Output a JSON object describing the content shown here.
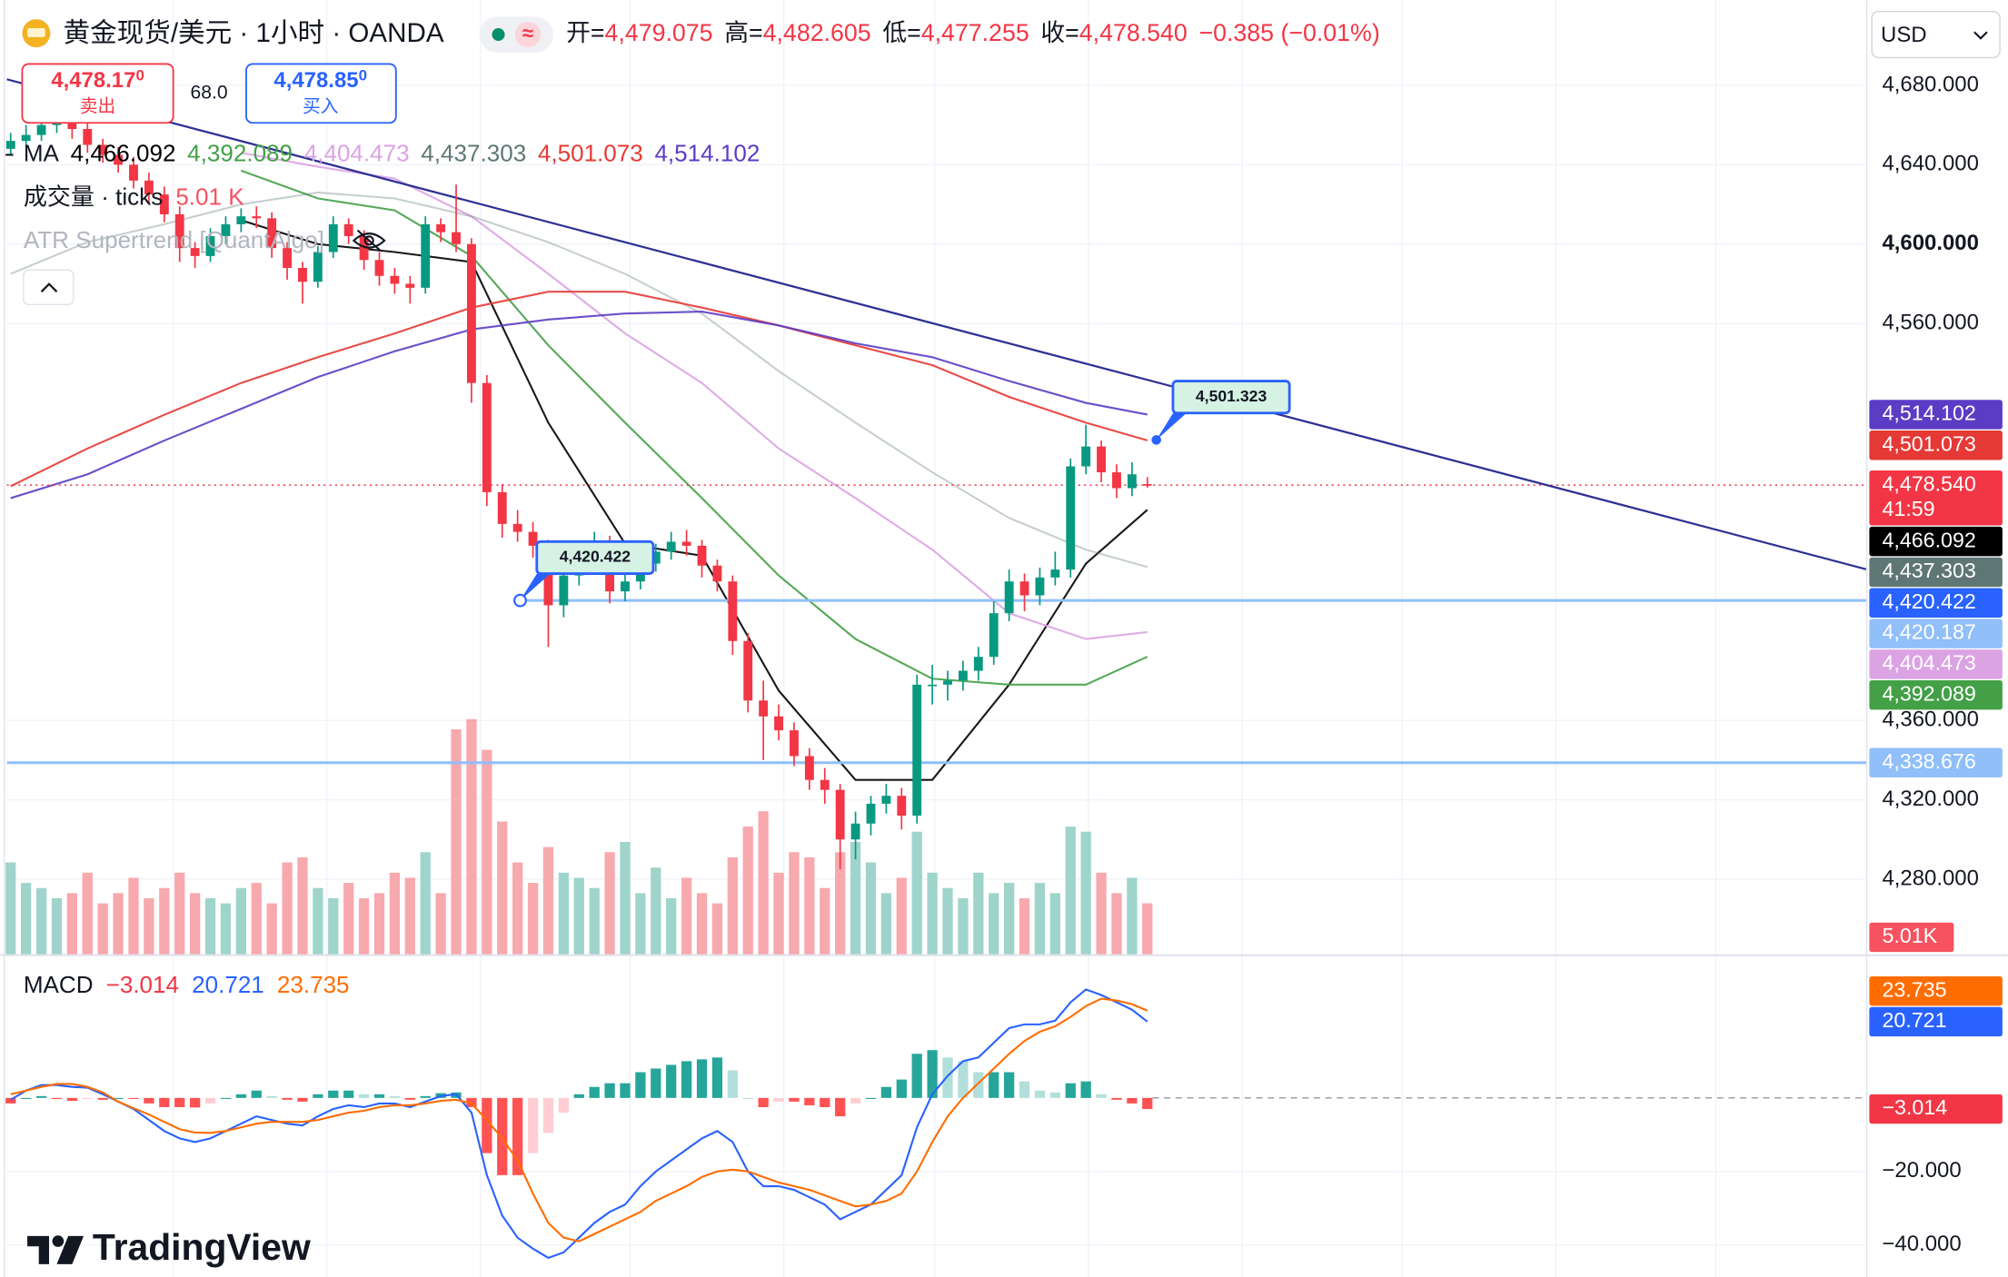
{
  "header": {
    "symbol": "黄金现货/美元 · 1小时 · OANDA",
    "open_label": "开=",
    "open": "4,479.075",
    "high_label": "高=",
    "high": "4,482.605",
    "low_label": "低=",
    "low": "4,477.255",
    "close_label": "收=",
    "close": "4,478.540",
    "change": "−0.385 (−0.01%)",
    "currency": "USD"
  },
  "quote": {
    "sell_price": "4,478.17",
    "sell_pip": "0",
    "sell_label": "卖出",
    "spread": "68.0",
    "buy_price": "4,478.85",
    "buy_pip": "0",
    "buy_label": "买入"
  },
  "legend": {
    "volume_label": "成交量 · ticks",
    "volume_value": "5.01 K",
    "indicator": "ATR Supertrend [QuantAlgo]"
  },
  "brand": "TradingView",
  "chart_data": {
    "type": "candlestick",
    "up_color": "#089981",
    "down_color": "#f23645",
    "ylim": [
      4242,
      4723
    ],
    "yticks": [
      {
        "value": 4680,
        "label": "4,680.000"
      },
      {
        "value": 4640,
        "label": "4,640.000"
      },
      {
        "value": 4600,
        "label": "4,600.000",
        "bold": true
      },
      {
        "value": 4560,
        "label": "4,560.000"
      },
      {
        "value": 4360,
        "label": "4,360.000"
      },
      {
        "value": 4320,
        "label": "4,320.000"
      },
      {
        "value": 4280,
        "label": "4,280.000"
      }
    ],
    "candles": [
      [
        4648,
        4656,
        4645,
        4652
      ],
      [
        4652,
        4660,
        4649,
        4655
      ],
      [
        4655,
        4665,
        4652,
        4660
      ],
      [
        4660,
        4666,
        4656,
        4662
      ],
      [
        4662,
        4664,
        4653,
        4658
      ],
      [
        4658,
        4661,
        4646,
        4650
      ],
      [
        4650,
        4653,
        4641,
        4645
      ],
      [
        4645,
        4649,
        4636,
        4640
      ],
      [
        4640,
        4644,
        4628,
        4632
      ],
      [
        4632,
        4636,
        4620,
        4625
      ],
      [
        4625,
        4629,
        4611,
        4615
      ],
      [
        4615,
        4619,
        4591,
        4598
      ],
      [
        4598,
        4601,
        4588,
        4594
      ],
      [
        4594,
        4608,
        4591,
        4604
      ],
      [
        4604,
        4614,
        4600,
        4610
      ],
      [
        4610,
        4618,
        4606,
        4614
      ],
      [
        4614,
        4619,
        4608,
        4613
      ],
      [
        4613,
        4616,
        4593,
        4598
      ],
      [
        4598,
        4601,
        4582,
        4588
      ],
      [
        4588,
        4591,
        4570,
        4581
      ],
      [
        4581,
        4599,
        4578,
        4596
      ],
      [
        4596,
        4614,
        4593,
        4610
      ],
      [
        4610,
        4613,
        4600,
        4604
      ],
      [
        4604,
        4607,
        4587,
        4592
      ],
      [
        4592,
        4596,
        4579,
        4584
      ],
      [
        4584,
        4588,
        4575,
        4580
      ],
      [
        4580,
        4584,
        4570,
        4578
      ],
      [
        4578,
        4614,
        4575,
        4610
      ],
      [
        4610,
        4613,
        4601,
        4606
      ],
      [
        4606,
        4630,
        4596,
        4600
      ],
      [
        4600,
        4603,
        4520,
        4530
      ],
      [
        4530,
        4534,
        4468,
        4475
      ],
      [
        4475,
        4479,
        4452,
        4459
      ],
      [
        4459,
        4466,
        4450,
        4455
      ],
      [
        4455,
        4460,
        4442,
        4448
      ],
      [
        4448,
        4451,
        4397,
        4418
      ],
      [
        4418,
        4437,
        4412,
        4433
      ],
      [
        4433,
        4445,
        4428,
        4440
      ],
      [
        4440,
        4455,
        4436,
        4450
      ],
      [
        4450,
        4453,
        4419,
        4425
      ],
      [
        4425,
        4435,
        4420,
        4430
      ],
      [
        4430,
        4443,
        4426,
        4439
      ],
      [
        4439,
        4449,
        4435,
        4445
      ],
      [
        4445,
        4455,
        4441,
        4450
      ],
      [
        4450,
        4456,
        4443,
        4448
      ],
      [
        4448,
        4451,
        4432,
        4438
      ],
      [
        4438,
        4441,
        4425,
        4430
      ],
      [
        4430,
        4433,
        4393,
        4400
      ],
      [
        4400,
        4404,
        4364,
        4370
      ],
      [
        4370,
        4380,
        4340,
        4362
      ],
      [
        4362,
        4368,
        4350,
        4355
      ],
      [
        4355,
        4359,
        4337,
        4342
      ],
      [
        4342,
        4346,
        4325,
        4330
      ],
      [
        4330,
        4336,
        4318,
        4325
      ],
      [
        4325,
        4328,
        4285,
        4300
      ],
      [
        4300,
        4314,
        4290,
        4308
      ],
      [
        4308,
        4322,
        4302,
        4318
      ],
      [
        4318,
        4328,
        4313,
        4322
      ],
      [
        4322,
        4326,
        4305,
        4312
      ],
      [
        4312,
        4383,
        4308,
        4378
      ],
      [
        4378,
        4388,
        4368,
        4378
      ],
      [
        4378,
        4385,
        4370,
        4380
      ],
      [
        4380,
        4390,
        4375,
        4385
      ],
      [
        4385,
        4397,
        4380,
        4392
      ],
      [
        4392,
        4420,
        4388,
        4414
      ],
      [
        4414,
        4436,
        4410,
        4430
      ],
      [
        4430,
        4434,
        4415,
        4423
      ],
      [
        4423,
        4437,
        4418,
        4432
      ],
      [
        4432,
        4445,
        4428,
        4436
      ],
      [
        4436,
        4492,
        4432,
        4488
      ],
      [
        4488,
        4509,
        4484,
        4498
      ],
      [
        4498,
        4501,
        4480,
        4485
      ],
      [
        4485,
        4489,
        4472,
        4477
      ],
      [
        4477,
        4490,
        4473,
        4484
      ],
      [
        4479.075,
        4482.605,
        4477.255,
        4478.54
      ]
    ],
    "volume": {
      "vlim": [
        0,
        25000
      ],
      "up_color": "#9fd4cb",
      "down_color": "#f7a9ae",
      "values": [
        9000,
        7000,
        6500,
        5500,
        6000,
        8000,
        5000,
        6000,
        7500,
        5500,
        6500,
        8000,
        6000,
        5500,
        5000,
        6500,
        7000,
        5000,
        9000,
        9500,
        6500,
        5500,
        7000,
        5500,
        6000,
        8000,
        7500,
        10000,
        6000,
        22000,
        23000,
        20000,
        13000,
        9000,
        7000,
        10500,
        8000,
        7500,
        6500,
        10000,
        11000,
        6000,
        8500,
        5500,
        7500,
        6000,
        5000,
        9500,
        12500,
        14000,
        8000,
        10000,
        9500,
        6500,
        10000,
        11000,
        9000,
        6000,
        7500,
        12000,
        8000,
        6500,
        5500,
        8000,
        6000,
        7000,
        5500,
        7000,
        6000,
        12500,
        12000,
        8000,
        6000,
        7500,
        5010
      ]
    },
    "ma": {
      "label": "MA",
      "x": [
        0,
        5,
        10,
        15,
        20,
        25,
        30,
        35,
        40,
        45,
        50,
        55,
        60,
        65,
        70,
        74
      ],
      "series": [
        {
          "label": "4,466.092",
          "color": "#000000",
          "values": [
            null,
            null,
            null,
            4612,
            4600,
            4596,
            4591,
            4510,
            4449,
            4443,
            4375,
            4330,
            4330,
            4378,
            4439,
            4466.092
          ]
        },
        {
          "label": "4,392.089",
          "color": "#43a047",
          "values": [
            null,
            null,
            null,
            4637,
            4623,
            4617,
            4594,
            4549,
            4510,
            4472,
            4433,
            4401,
            4381,
            4378,
            4378,
            4392.089
          ]
        },
        {
          "label": "4,404.473",
          "color": "#dba3e3",
          "values": [
            null,
            null,
            null,
            4646,
            4639,
            4633,
            4614,
            4585,
            4555,
            4530,
            4497,
            4472,
            4446,
            4414,
            4401,
            4404.473
          ]
        },
        {
          "label": "4,437.303",
          "color": "#5f7774",
          "values": [
            4585,
            4601,
            4610,
            4620,
            4626,
            4623,
            4614,
            4601,
            4585,
            4565,
            4536,
            4510,
            4485,
            4462,
            4446,
            4437.303
          ]
        },
        {
          "label": "4,501.073",
          "color": "#e53935",
          "values": [
            4478,
            4497,
            4514,
            4530,
            4543,
            4555,
            4568,
            4576,
            4576,
            4568,
            4559,
            4549,
            4539,
            4523,
            4510,
            4501.073
          ]
        },
        {
          "label": "4,514.102",
          "color": "#5b3cc4",
          "values": [
            4472,
            4484,
            4501,
            4517,
            4533,
            4546,
            4557,
            4562,
            4565,
            4566,
            4559,
            4550,
            4543,
            4531,
            4520,
            4514.102
          ]
        }
      ]
    },
    "price_labels": [
      {
        "value": 4514.102,
        "label": "4,514.102",
        "color": "#5b3cc4"
      },
      {
        "value": 4501.073,
        "label": "4,501.073",
        "color": "#e53935"
      },
      {
        "value": 4478.54,
        "label": "4,478.540",
        "countdown": "41:59",
        "color": "#f23645",
        "line": "dotted"
      },
      {
        "value": 4466.092,
        "label": "4,466.092",
        "color": "#000000"
      },
      {
        "value": 4437.303,
        "label": "4,437.303",
        "color": "#5f7774"
      },
      {
        "value": 4420.422,
        "label": "4,420.422",
        "color": "#2962ff",
        "line": "solid"
      },
      {
        "value": 4420.187,
        "label": "4,420.187",
        "color": "#90bff9"
      },
      {
        "value": 4404.473,
        "label": "4,404.473",
        "color": "#dba3e3"
      },
      {
        "value": 4392.089,
        "label": "4,392.089",
        "color": "#43a047"
      },
      {
        "value": 4338.676,
        "label": "4,338.676",
        "color": "#90bff9",
        "line": "solid"
      }
    ],
    "volume_badge": {
      "label": "5.01K",
      "color": "#f7525f"
    },
    "callouts": [
      {
        "value": 4420.422,
        "label": "4,420.422"
      },
      {
        "value": 4501.323,
        "label": "4,501.323"
      }
    ],
    "macd": {
      "label": "MACD",
      "ylim": [
        -48.7,
        38.3
      ],
      "yticks": [
        {
          "value": -20,
          "label": "−20.000"
        },
        {
          "value": -40,
          "label": "−40.000"
        }
      ],
      "histogram": {
        "label": "−3.014",
        "color": "#f23645",
        "colors": [
          "#26a69a",
          "#b2dfdb",
          "#ff5252",
          "#ffcdd2"
        ],
        "values": [
          -1.5,
          0,
          0.5,
          -0.3,
          -0.8,
          -0.2,
          -0.5,
          0,
          -0.2,
          -1.5,
          -2.5,
          -2.5,
          -2.6,
          -1.5,
          0,
          1,
          2,
          0.5,
          -0.5,
          -1,
          1,
          2,
          2,
          1,
          1,
          0.5,
          -0.5,
          0.5,
          1.3,
          1.5,
          -2.5,
          -15,
          -21,
          -21,
          -15,
          -9.5,
          -4,
          1,
          3,
          4,
          4,
          7,
          8,
          9,
          10,
          10.5,
          11,
          7.5,
          0,
          -2.5,
          -1,
          -1,
          -2,
          -2.5,
          -5,
          -1.5,
          0,
          3,
          5,
          12,
          13,
          11,
          10,
          7,
          7,
          7,
          4.5,
          2,
          1.5,
          4,
          4.5,
          1,
          -0.5,
          -1.5,
          -3.014
        ]
      },
      "series": [
        {
          "label": "20.721",
          "color": "#2962ff",
          "values": [
            -0.5,
            2,
            3.5,
            3.5,
            3,
            2.8,
            1,
            -1,
            -3,
            -6,
            -9,
            -11,
            -12,
            -11,
            -9,
            -7,
            -5,
            -6,
            -7,
            -7.5,
            -5,
            -3,
            -2,
            -2.5,
            -1.5,
            -1.5,
            -2.5,
            -1,
            0.5,
            1,
            -4,
            -21,
            -32,
            -38,
            -41,
            -43.5,
            -42,
            -38,
            -34,
            -31,
            -29,
            -24,
            -20,
            -17,
            -14,
            -11,
            -9,
            -12,
            -20,
            -24,
            -24,
            -25,
            -27,
            -29,
            -33,
            -31,
            -29,
            -25,
            -21,
            -8,
            1,
            6,
            10,
            11,
            15,
            19,
            20,
            20,
            21,
            26,
            29.5,
            28,
            26,
            24,
            20.721
          ]
        },
        {
          "label": "23.735",
          "color": "#ff6d00",
          "values": [
            1,
            2,
            3,
            3.8,
            3.8,
            3,
            1.5,
            -1,
            -2.8,
            -4.5,
            -6.5,
            -8.5,
            -9.4,
            -9.5,
            -9,
            -8,
            -7,
            -6.5,
            -6.5,
            -6.5,
            -6,
            -5,
            -4,
            -3.5,
            -2.5,
            -2,
            -2,
            -1.5,
            -0.8,
            -0.5,
            -1.5,
            -6,
            -11,
            -17,
            -26,
            -34,
            -38,
            -39,
            -37,
            -35,
            -33,
            -31,
            -28,
            -26,
            -24,
            -21.5,
            -20,
            -19.5,
            -20,
            -21.5,
            -23,
            -24,
            -25,
            -26.5,
            -28,
            -29.5,
            -29,
            -28,
            -26,
            -20,
            -12,
            -5,
            0,
            4,
            8,
            12,
            15.5,
            18,
            19.5,
            22,
            25,
            27,
            26.5,
            25.5,
            23.735
          ]
        }
      ],
      "price_labels": [
        {
          "value": 23.735,
          "label": "23.735",
          "color": "#ff6d00"
        },
        {
          "value": 20.721,
          "label": "20.721",
          "color": "#2962ff"
        },
        {
          "value": -3.014,
          "label": "−3.014",
          "color": "#f23645"
        }
      ]
    }
  }
}
